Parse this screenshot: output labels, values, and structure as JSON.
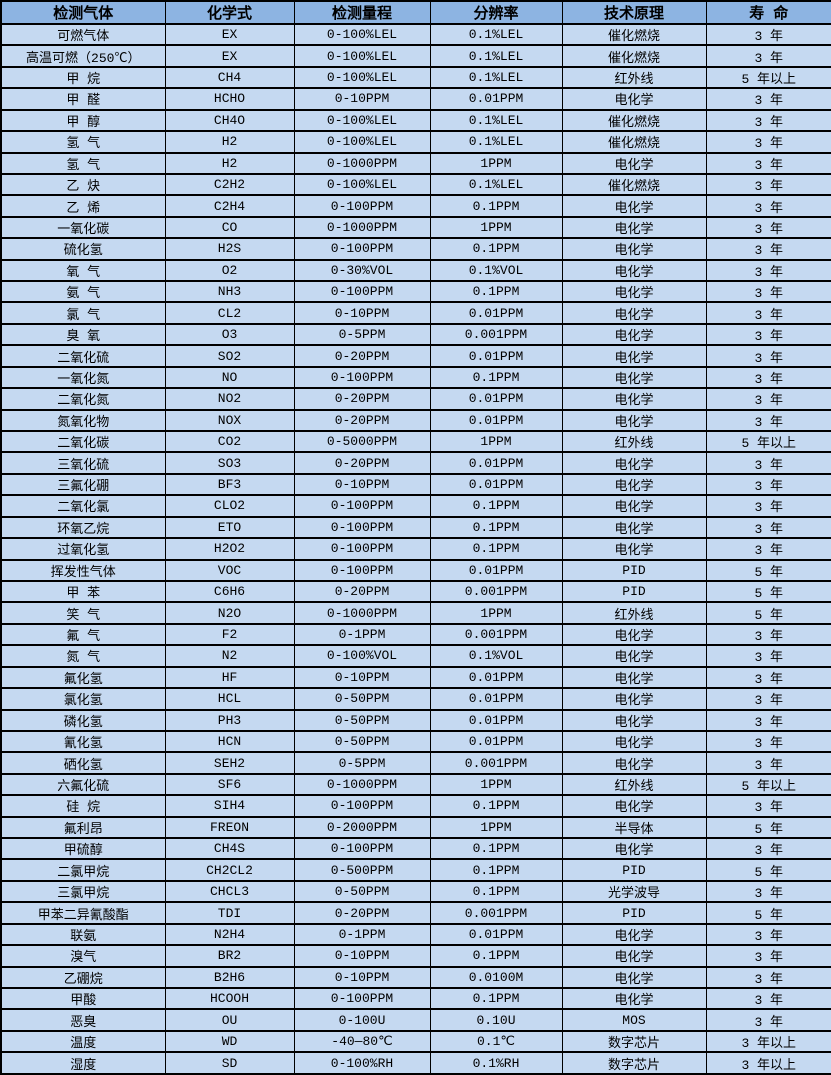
{
  "colors": {
    "header_bg": "#8DB4E2",
    "row_bg": "#C5D9F1",
    "border": "#000000",
    "text": "#000000"
  },
  "table": {
    "headers": [
      "检测气体",
      "化学式",
      "检测量程",
      "分辨率",
      "技术原理",
      "寿 命"
    ],
    "rows": [
      [
        "可燃气体",
        "EX",
        "0-100%LEL",
        "0.1%LEL",
        "催化燃烧",
        "3 年"
      ],
      [
        "高温可燃（250℃）",
        "EX",
        "0-100%LEL",
        "0.1%LEL",
        "催化燃烧",
        "3 年"
      ],
      [
        "甲 烷",
        "CH4",
        "0-100%LEL",
        "0.1%LEL",
        "红外线",
        "5 年以上"
      ],
      [
        "甲 醛",
        "HCHO",
        "0-10PPM",
        "0.01PPM",
        "电化学",
        "3 年"
      ],
      [
        "甲 醇",
        "CH4O",
        "0-100%LEL",
        "0.1%LEL",
        "催化燃烧",
        "3 年"
      ],
      [
        "氢 气",
        "H2",
        "0-100%LEL",
        "0.1%LEL",
        "催化燃烧",
        "3 年"
      ],
      [
        "氢 气",
        "H2",
        "0-1000PPM",
        "1PPM",
        "电化学",
        "3 年"
      ],
      [
        "乙 炔",
        "C2H2",
        "0-100%LEL",
        "0.1%LEL",
        "催化燃烧",
        "3 年"
      ],
      [
        "乙 烯",
        "C2H4",
        "0-100PPM",
        "0.1PPM",
        "电化学",
        "3 年"
      ],
      [
        "一氧化碳",
        "CO",
        "0-1000PPM",
        "1PPM",
        "电化学",
        "3 年"
      ],
      [
        "硫化氢",
        "H2S",
        "0-100PPM",
        "0.1PPM",
        "电化学",
        "3 年"
      ],
      [
        "氧 气",
        "O2",
        "0-30%VOL",
        "0.1%VOL",
        "电化学",
        "3 年"
      ],
      [
        "氨 气",
        "NH3",
        "0-100PPM",
        "0.1PPM",
        "电化学",
        "3 年"
      ],
      [
        "氯 气",
        "CL2",
        "0-10PPM",
        "0.01PPM",
        "电化学",
        "3 年"
      ],
      [
        "臭 氧",
        "O3",
        "0-5PPM",
        "0.001PPM",
        "电化学",
        "3 年"
      ],
      [
        "二氧化硫",
        "SO2",
        "0-20PPM",
        "0.01PPM",
        "电化学",
        "3 年"
      ],
      [
        "一氧化氮",
        "NO",
        "0-100PPM",
        "0.1PPM",
        "电化学",
        "3 年"
      ],
      [
        "二氧化氮",
        "NO2",
        "0-20PPM",
        "0.01PPM",
        "电化学",
        "3 年"
      ],
      [
        "氮氧化物",
        "NOX",
        "0-20PPM",
        "0.01PPM",
        "电化学",
        "3 年"
      ],
      [
        "二氧化碳",
        "CO2",
        "0-5000PPM",
        "1PPM",
        "红外线",
        "5 年以上"
      ],
      [
        "三氧化硫",
        "SO3",
        "0-20PPM",
        "0.01PPM",
        "电化学",
        "3 年"
      ],
      [
        "三氟化硼",
        "BF3",
        "0-10PPM",
        "0.01PPM",
        "电化学",
        "3 年"
      ],
      [
        "二氧化氯",
        "CLO2",
        "0-100PPM",
        "0.1PPM",
        "电化学",
        "3 年"
      ],
      [
        "环氧乙烷",
        "ETO",
        "0-100PPM",
        "0.1PPM",
        "电化学",
        "3 年"
      ],
      [
        "过氧化氢",
        "H2O2",
        "0-100PPM",
        "0.1PPM",
        "电化学",
        "3 年"
      ],
      [
        "挥发性气体",
        "VOC",
        "0-100PPM",
        "0.01PPM",
        "PID",
        "5 年"
      ],
      [
        "甲 苯",
        "C6H6",
        "0-20PPM",
        "0.001PPM",
        "PID",
        "5 年"
      ],
      [
        "笑 气",
        "N2O",
        "0-1000PPM",
        "1PPM",
        "红外线",
        "5 年"
      ],
      [
        "氟 气",
        "F2",
        "0-1PPM",
        "0.001PPM",
        "电化学",
        "3 年"
      ],
      [
        "氮 气",
        "N2",
        "0-100%VOL",
        "0.1%VOL",
        "电化学",
        "3 年"
      ],
      [
        "氟化氢",
        "HF",
        "0-10PPM",
        "0.01PPM",
        "电化学",
        "3 年"
      ],
      [
        "氯化氢",
        "HCL",
        "0-50PPM",
        "0.01PPM",
        "电化学",
        "3 年"
      ],
      [
        "磷化氢",
        "PH3",
        "0-50PPM",
        "0.01PPM",
        "电化学",
        "3 年"
      ],
      [
        "氰化氢",
        "HCN",
        "0-50PPM",
        "0.01PPM",
        "电化学",
        "3 年"
      ],
      [
        "硒化氢",
        "SEH2",
        "0-5PPM",
        "0.001PPM",
        "电化学",
        "3 年"
      ],
      [
        "六氟化硫",
        "SF6",
        "0-1000PPM",
        "1PPM",
        "红外线",
        "5 年以上"
      ],
      [
        "硅 烷",
        "SIH4",
        "0-100PPM",
        "0.1PPM",
        "电化学",
        "3 年"
      ],
      [
        "氟利昂",
        "FREON",
        "0-2000PPM",
        "1PPM",
        "半导体",
        "5 年"
      ],
      [
        "甲硫醇",
        "CH4S",
        "0-100PPM",
        "0.1PPM",
        "电化学",
        "3 年"
      ],
      [
        "二氯甲烷",
        "CH2CL2",
        "0-500PPM",
        "0.1PPM",
        "PID",
        "5 年"
      ],
      [
        "三氯甲烷",
        "CHCL3",
        "0-50PPM",
        "0.1PPM",
        "光学波导",
        "3 年"
      ],
      [
        "甲苯二异氰酸酯",
        "TDI",
        "0-20PPM",
        "0.001PPM",
        "PID",
        "5 年"
      ],
      [
        "联氨",
        "N2H4",
        "0-1PPM",
        "0.01PPM",
        "电化学",
        "3 年"
      ],
      [
        "溴气",
        "BR2",
        "0-10PPM",
        "0.1PPM",
        "电化学",
        "3 年"
      ],
      [
        "乙硼烷",
        "B2H6",
        "0-10PPM",
        "0.0100M",
        "电化学",
        "3 年"
      ],
      [
        "甲酸",
        "HCOOH",
        "0-100PPM",
        "0.1PPM",
        "电化学",
        "3 年"
      ],
      [
        "恶臭",
        "OU",
        "0-100U",
        "0.10U",
        "MOS",
        "3 年"
      ],
      [
        "温度",
        "WD",
        "-40—80℃",
        "0.1℃",
        "数字芯片",
        "3 年以上"
      ],
      [
        "湿度",
        "SD",
        "0-100%RH",
        "0.1%RH",
        "数字芯片",
        "3 年以上"
      ]
    ]
  }
}
